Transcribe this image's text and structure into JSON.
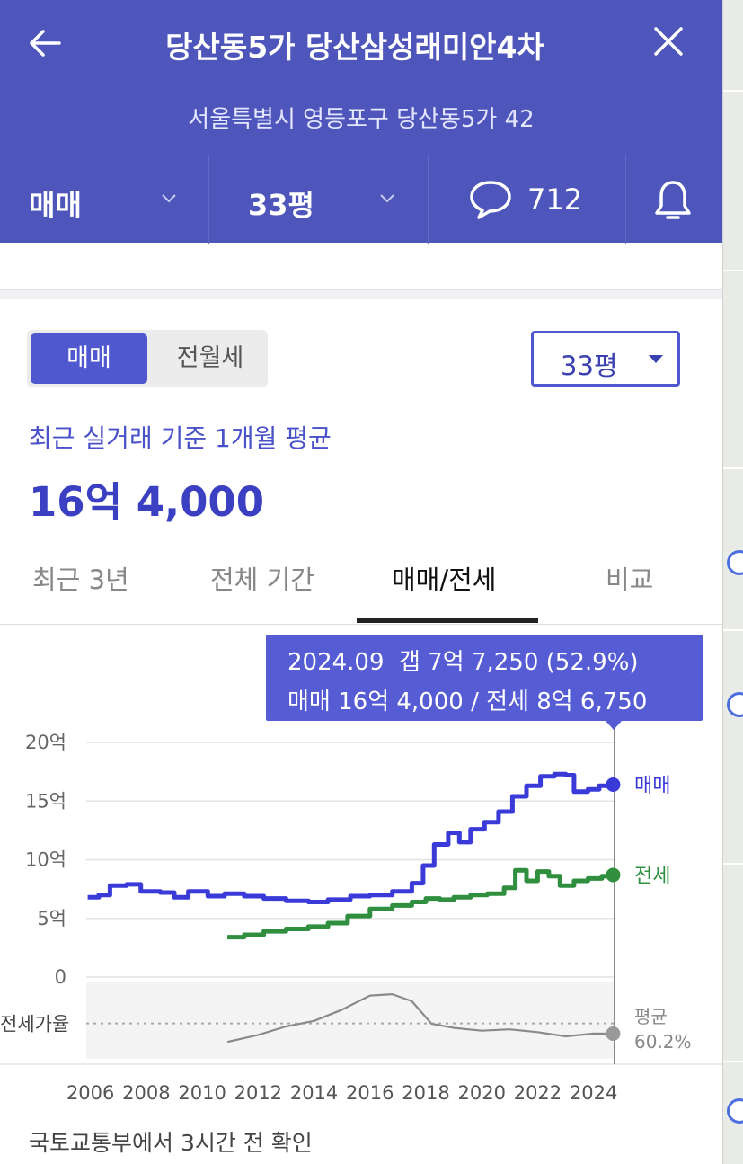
{
  "header": {
    "title": "당산동5가 당산삼성래미안4차",
    "address": "서울특별시 영등포구 당산동5가 42"
  },
  "segments": {
    "trade_type": "매매",
    "area": "33평",
    "comment_count": "712"
  },
  "toggle": {
    "active": "매매",
    "inactive": "전월세"
  },
  "size_select": {
    "value": "33평"
  },
  "summary": {
    "label": "최근 실거래 기준 1개월 평균",
    "price": "16억 4,000"
  },
  "tabs": [
    {
      "label": "최근 3년"
    },
    {
      "label": "전체 기간"
    },
    {
      "label": "매매/전세"
    },
    {
      "label": "비교"
    }
  ],
  "tooltip": {
    "line1": "2024.09  갭 7억 7,250 (52.9%)",
    "line2": "매매 16억 4,000 / 전세 8억 6,750"
  },
  "footer": {
    "note": "국토교통부에서 3시간 전 확인"
  },
  "colors": {
    "header_bg": "#4e55bb",
    "sale": "#3a3ad9",
    "jeonse": "#2f8f3f",
    "ratio": "#8a8a8a"
  },
  "chart_data": {
    "type": "line",
    "x_ticks": [
      "2006",
      "2008",
      "2010",
      "2012",
      "2014",
      "2016",
      "2018",
      "2020",
      "2022",
      "2024"
    ],
    "y_ticks": [
      "20억",
      "15억",
      "10억",
      "5억",
      "0"
    ],
    "ylim": [
      0,
      20
    ],
    "ratio_label": "전세가율",
    "ratio_avg_label": "평균",
    "ratio_avg_value": "60.2%",
    "series": [
      {
        "name": "매매",
        "points": [
          [
            2005.9,
            6.8
          ],
          [
            2006.3,
            7.0
          ],
          [
            2006.7,
            7.8
          ],
          [
            2007.3,
            7.9
          ],
          [
            2007.8,
            7.3
          ],
          [
            2008.5,
            7.2
          ],
          [
            2009.0,
            6.8
          ],
          [
            2009.5,
            7.3
          ],
          [
            2010.2,
            6.9
          ],
          [
            2010.8,
            7.1
          ],
          [
            2011.5,
            6.9
          ],
          [
            2012.2,
            6.7
          ],
          [
            2013.0,
            6.5
          ],
          [
            2013.8,
            6.4
          ],
          [
            2014.5,
            6.6
          ],
          [
            2015.3,
            6.9
          ],
          [
            2016.0,
            7.0
          ],
          [
            2016.8,
            7.3
          ],
          [
            2017.5,
            8.0
          ],
          [
            2017.9,
            9.5
          ],
          [
            2018.3,
            11.3
          ],
          [
            2018.8,
            12.3
          ],
          [
            2019.2,
            11.5
          ],
          [
            2019.6,
            12.6
          ],
          [
            2020.1,
            13.2
          ],
          [
            2020.6,
            14.1
          ],
          [
            2021.1,
            15.4
          ],
          [
            2021.6,
            16.3
          ],
          [
            2022.1,
            17.1
          ],
          [
            2022.6,
            17.3
          ],
          [
            2023.0,
            17.2
          ],
          [
            2023.3,
            15.8
          ],
          [
            2023.8,
            16.0
          ],
          [
            2024.2,
            16.3
          ],
          [
            2024.7,
            16.4
          ]
        ]
      },
      {
        "name": "전세",
        "points": [
          [
            2010.9,
            3.4
          ],
          [
            2011.5,
            3.6
          ],
          [
            2012.2,
            3.9
          ],
          [
            2013.0,
            4.1
          ],
          [
            2013.8,
            4.3
          ],
          [
            2014.5,
            4.6
          ],
          [
            2015.2,
            5.2
          ],
          [
            2016.0,
            5.8
          ],
          [
            2016.8,
            6.1
          ],
          [
            2017.5,
            6.4
          ],
          [
            2018.0,
            6.7
          ],
          [
            2018.5,
            6.6
          ],
          [
            2019.0,
            6.8
          ],
          [
            2019.6,
            7.0
          ],
          [
            2020.2,
            7.1
          ],
          [
            2020.8,
            7.6
          ],
          [
            2021.2,
            9.1
          ],
          [
            2021.6,
            8.2
          ],
          [
            2022.0,
            9.0
          ],
          [
            2022.4,
            8.6
          ],
          [
            2022.8,
            7.8
          ],
          [
            2023.3,
            8.2
          ],
          [
            2023.8,
            8.4
          ],
          [
            2024.3,
            8.6
          ],
          [
            2024.7,
            8.7
          ]
        ]
      },
      {
        "name": "전세가율",
        "points": [
          [
            2010.9,
            47
          ],
          [
            2012.0,
            52
          ],
          [
            2013.0,
            58
          ],
          [
            2014.0,
            62
          ],
          [
            2015.0,
            70
          ],
          [
            2016.0,
            80
          ],
          [
            2016.8,
            81
          ],
          [
            2017.5,
            76
          ],
          [
            2018.2,
            60
          ],
          [
            2019.0,
            57
          ],
          [
            2020.0,
            55
          ],
          [
            2021.0,
            56
          ],
          [
            2022.0,
            54
          ],
          [
            2023.0,
            51
          ],
          [
            2024.0,
            53
          ],
          [
            2024.7,
            52.9
          ]
        ]
      }
    ],
    "selected": {
      "x": "2024.09"
    }
  }
}
